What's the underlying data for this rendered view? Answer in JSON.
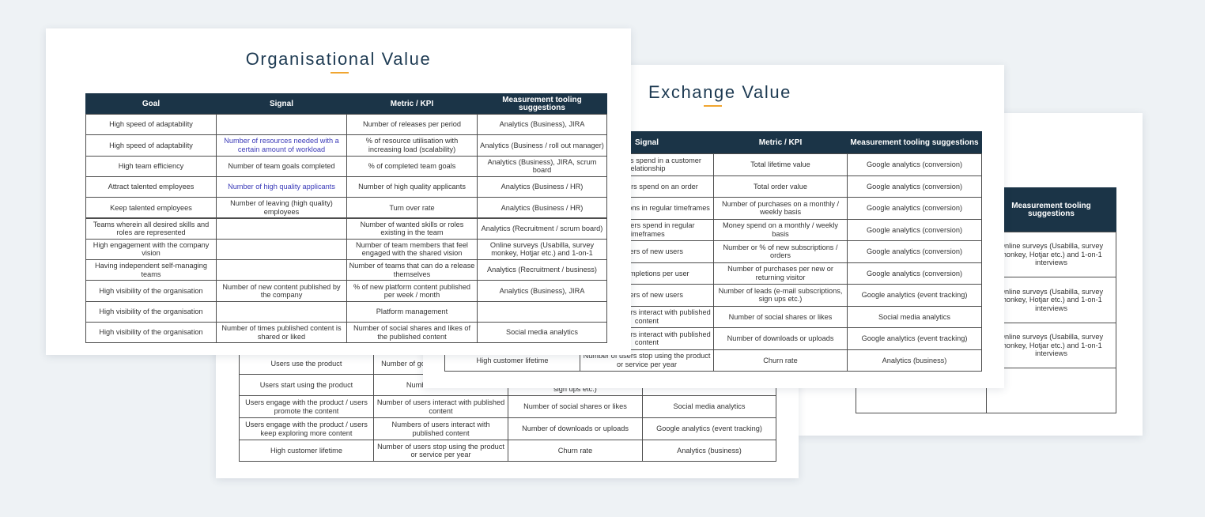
{
  "right_card": {
    "table": {
      "headers": [
        null,
        "Measurement tooling suggestions"
      ],
      "rows": [
        [
          null,
          "Online surveys (Usabilla, survey monkey, Hotjar etc.) and 1-on-1 interviews"
        ],
        [
          null,
          "Online surveys (Usabilla, survey monkey, Hotjar etc.) and 1-on-1 interviews"
        ],
        [
          null,
          "Online surveys (Usabilla, survey monkey, Hotjar etc.) and 1-on-1 interviews"
        ],
        [
          null,
          null
        ]
      ]
    }
  },
  "product_card": {
    "table": {
      "rows": [
        [
          "Users use the product",
          "Number of goal completions per user",
          null,
          null
        ],
        [
          "Users start using the product",
          "Number of new users",
          "Number of leads (e-mail subscriptions, sign ups etc.)",
          null
        ],
        [
          "Users engage with the product / users promote the content",
          "Number of users interact with published content",
          "Number of social shares or likes",
          "Social media analytics"
        ],
        [
          "Users engage with the product / users keep exploring more content",
          "Numbers of users interact with published content",
          "Number of downloads or uploads",
          "Google analytics (event tracking)"
        ],
        [
          "High customer lifetime",
          "Number of users stop using the product or service per year",
          "Churn rate",
          "Analytics (business)"
        ]
      ]
    }
  },
  "exchange_card": {
    "title": "Exchange Value",
    "table": {
      "headers": [
        null,
        "Signal",
        "Metric / KPI",
        "Measurement tooling suggestions"
      ],
      "rows": [
        [
          null,
          "Money users spend in a customer relationship",
          "Total lifetime value",
          "Google analytics (conversion)"
        ],
        [
          null,
          "Money users spend on an order",
          "Total order value",
          "Google analytics (conversion)"
        ],
        [
          null,
          "Goal completions in regular timeframes",
          "Number of purchases on a monthly / weekly basis",
          "Google analytics (conversion)"
        ],
        [
          null,
          "Money users spend in regular timeframes",
          "Money spend on a monthly / weekly basis",
          "Google analytics (conversion)"
        ],
        [
          null,
          "Numbers of new users",
          "Number or % of new subscriptions / orders",
          "Google analytics (conversion)"
        ],
        [
          null,
          "Goal completions per user",
          "Number of purchases per new or returning visitor",
          "Google analytics (conversion)"
        ],
        [
          null,
          "Numbers of new users",
          "Number of leads (e-mail subscriptions, sign ups etc.)",
          "Google analytics (event tracking)"
        ],
        [
          null,
          "Number of users interact with published content",
          "Number of social shares or likes",
          "Social media analytics"
        ],
        [
          null,
          "Number of users interact with published content",
          "Number of downloads or uploads",
          "Google analytics (event tracking)"
        ],
        [
          "High customer lifetime",
          "Number of users stop using the product or service per year",
          "Churn rate",
          "Analytics (business)"
        ]
      ]
    }
  },
  "org_card": {
    "title": "Organisational Value",
    "table": {
      "headers": [
        "Goal",
        "Signal",
        "Metric / KPI",
        "Measurement tooling suggestions"
      ],
      "rows": [
        [
          "High speed of adaptability",
          null,
          "Number of releases per period",
          "Analytics (Business), JIRA"
        ],
        [
          "High speed of adaptability",
          "Number of resources needed with a certain amount of workload",
          "% of resource utilisation with increasing load (scalability)",
          "Analytics (Business / roll out manager)"
        ],
        [
          "High team efficiency",
          "Number of team goals completed",
          "% of completed team goals",
          "Analytics (Business), JIRA, scrum board"
        ],
        [
          "Attract talented employees",
          "Number of high quality applicants",
          "Number of high quality applicants",
          "Analytics (Business / HR)"
        ],
        [
          "Keep talented employees",
          "Number of leaving (high quality) employees",
          "Turn over rate",
          "Analytics (Business / HR)"
        ],
        [
          "Teams wherein all desired skills and roles are represented",
          null,
          "Number of wanted skills or roles existing in the team",
          "Analytics (Recruitment / scrum board)"
        ],
        [
          "High engagement with the company vision",
          null,
          "Number of team members that feel engaged with the shared vision",
          "Online surveys (Usabilla, survey monkey, Hotjar etc.) and 1-on-1"
        ],
        [
          "Having independent self-managing teams",
          null,
          "Number of teams that can do a release themselves",
          "Analytics (Recruitment / business)"
        ],
        [
          "High visibility of the organisation",
          "Number of new content published by the company",
          "% of new platform content published per week / month",
          "Analytics (Business), JIRA"
        ],
        [
          "High visibility of the organisation",
          null,
          "Platform management",
          null
        ],
        [
          "High visibility of the organisation",
          "Number of times published content is shared or liked",
          "Number of social shares and likes of the published content",
          "Social media analytics"
        ]
      ]
    }
  }
}
